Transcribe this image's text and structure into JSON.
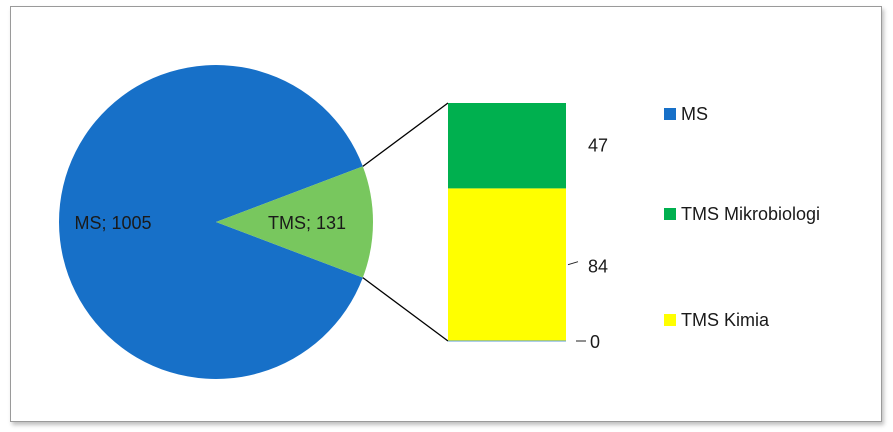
{
  "chart_data": {
    "type": "pie",
    "subtype": "bar-of-pie",
    "pie": {
      "slices": [
        {
          "name": "MS",
          "value": 1005,
          "label": "MS; 1005",
          "color": "#1770C8"
        },
        {
          "name": "TMS",
          "value": 131,
          "label": "TMS; 131",
          "color": "#78C75E"
        }
      ]
    },
    "bar": {
      "breakdown_of": "TMS",
      "segments": [
        {
          "name": "TMS Kimia",
          "value": 84,
          "color": "#FFFF00"
        },
        {
          "name": "TMS Mikrobiologi",
          "value": 47,
          "color": "#00B04F"
        }
      ],
      "tick_labels": [
        "0",
        "84",
        "47"
      ]
    },
    "legend": {
      "position": "right",
      "items": [
        {
          "label": "MS",
          "color": "#1770C8"
        },
        {
          "label": "TMS Mikrobiologi",
          "color": "#00B04F"
        },
        {
          "label": "TMS Kimia",
          "color": "#FFFF00"
        }
      ]
    }
  }
}
